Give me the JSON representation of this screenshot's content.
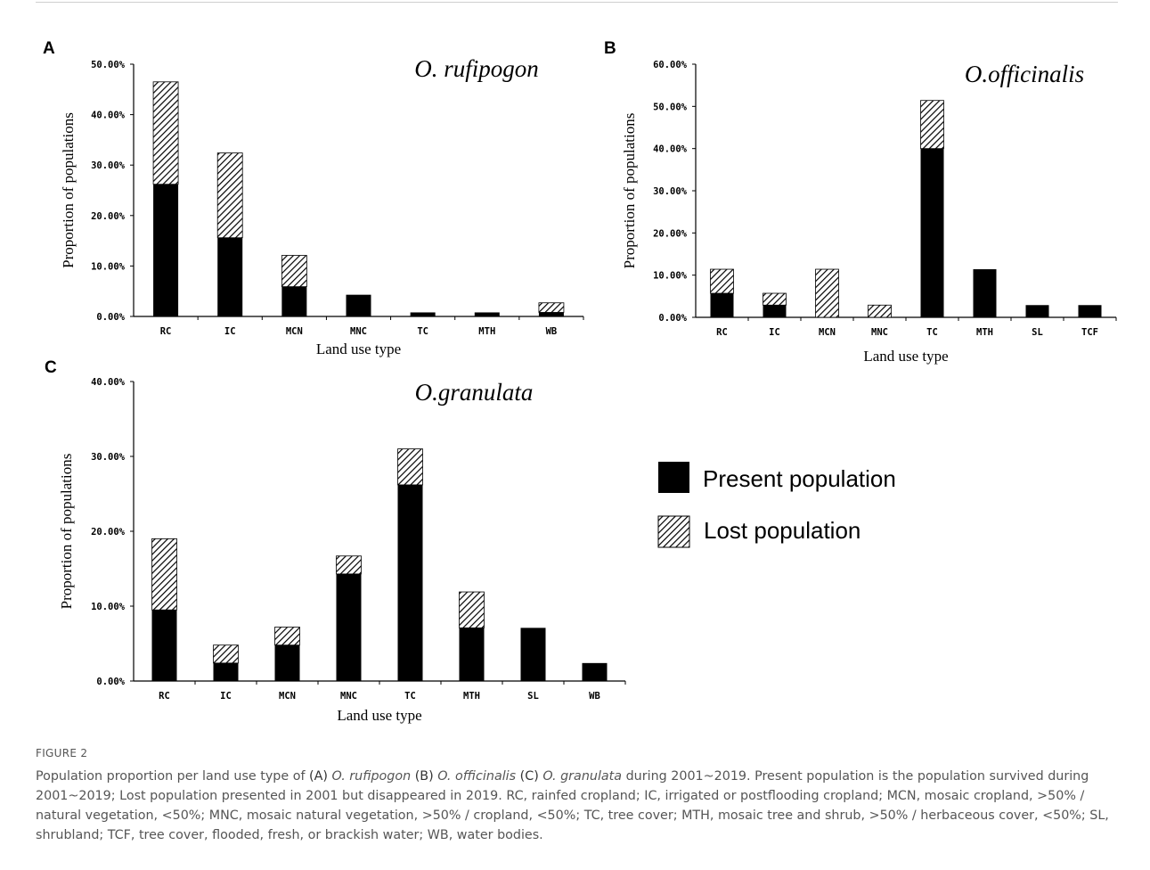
{
  "figure_label": "FIGURE 2",
  "caption": {
    "pre": "Population proportion per land use type of ",
    "a_tag": "(A)",
    "a_name": "O. rufipogon",
    "b_tag": "(B)",
    "b_name": "O. officinalis",
    "c_tag": "(C)",
    "c_name": "O. granulata",
    "post": " during 2001~2019. Present population is the population survived during 2001~2019; Lost population presented in 2001 but disappeared in 2019. RC, rainfed cropland; IC, irrigated or postflooding cropland; MCN, mosaic cropland, >50% / natural vegetation, <50%; MNC, mosaic natural vegetation, >50% / cropland, <50%; TC, tree cover; MTH, mosaic tree and shrub, >50% / herbaceous cover, <50%; SL, shrubland; TCF, tree cover, flooded, fresh, or brackish water; WB, water bodies."
  },
  "legend": {
    "present": "Present population",
    "lost": "Lost population"
  },
  "colors": {
    "present": "#000000",
    "lost_hatch": "#000000",
    "axis": "#000000"
  },
  "chart_data": [
    {
      "panel": "A",
      "type": "bar",
      "stacked": true,
      "title": "O. rufipogon",
      "xlabel": "Land use type",
      "ylabel": "Proportion of populations",
      "ylim": [
        0,
        50
      ],
      "yticks": [
        "0.00%",
        "10.00%",
        "20.00%",
        "30.00%",
        "40.00%",
        "50.00%"
      ],
      "categories": [
        "RC",
        "IC",
        "MCN",
        "MNC",
        "TC",
        "MTH",
        "WB"
      ],
      "series": [
        {
          "name": "Present population",
          "values": [
            26.2,
            15.6,
            5.9,
            4.3,
            0.8,
            0.8,
            0.8
          ]
        },
        {
          "name": "Lost population",
          "values": [
            20.3,
            16.8,
            6.2,
            0,
            0,
            0,
            1.9
          ]
        }
      ]
    },
    {
      "panel": "B",
      "type": "bar",
      "stacked": true,
      "title": "O.officinalis",
      "xlabel": "Land use type",
      "ylabel": "Proportion of populations",
      "ylim": [
        0,
        60
      ],
      "yticks": [
        "0.00%",
        "10.00%",
        "20.00%",
        "30.00%",
        "40.00%",
        "50.00%",
        "60.00%"
      ],
      "categories": [
        "RC",
        "IC",
        "MCN",
        "MNC",
        "TC",
        "MTH",
        "SL",
        "TCF"
      ],
      "series": [
        {
          "name": "Present population",
          "values": [
            5.7,
            2.9,
            0,
            0,
            40.0,
            11.4,
            2.9,
            2.9
          ]
        },
        {
          "name": "Lost population",
          "values": [
            5.7,
            2.8,
            11.4,
            2.9,
            11.4,
            0,
            0,
            0
          ]
        }
      ]
    },
    {
      "panel": "C",
      "type": "bar",
      "stacked": true,
      "title": "O.granulata",
      "xlabel": "Land use type",
      "ylabel": "Proportion of populations",
      "ylim": [
        0,
        40
      ],
      "yticks": [
        "0.00%",
        "10.00%",
        "20.00%",
        "30.00%",
        "40.00%"
      ],
      "categories": [
        "RC",
        "IC",
        "MCN",
        "MNC",
        "TC",
        "MTH",
        "SL",
        "WB"
      ],
      "series": [
        {
          "name": "Present population",
          "values": [
            9.5,
            2.4,
            4.8,
            14.3,
            26.2,
            7.1,
            7.1,
            2.4
          ]
        },
        {
          "name": "Lost population",
          "values": [
            9.5,
            2.4,
            2.4,
            2.4,
            4.8,
            4.8,
            0,
            0
          ]
        }
      ]
    }
  ]
}
